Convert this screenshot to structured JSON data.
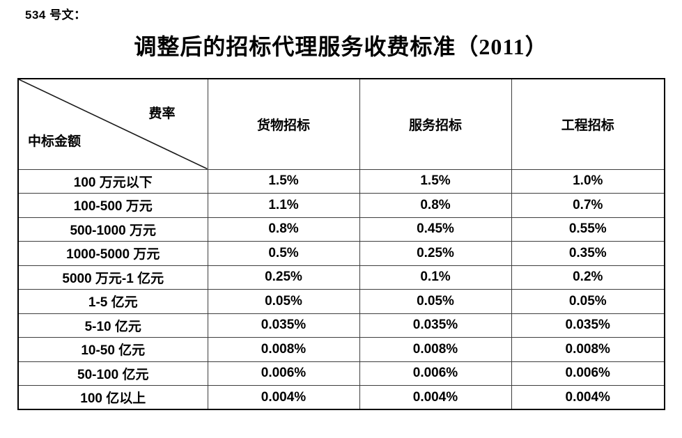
{
  "page": {
    "doc_label": "534 号文：",
    "title": "调整后的招标代理服务收费标准（2011）"
  },
  "table": {
    "corner": {
      "rate_label": "费率",
      "amount_label": "中标金额"
    },
    "columns": [
      "货物招标",
      "服务招标",
      "工程招标"
    ],
    "rows": [
      {
        "amount": "100 万元以下",
        "rates": [
          "1.5%",
          "1.5%",
          "1.0%"
        ]
      },
      {
        "amount": "100-500 万元",
        "rates": [
          "1.1%",
          "0.8%",
          "0.7%"
        ]
      },
      {
        "amount": "500-1000 万元",
        "rates": [
          "0.8%",
          "0.45%",
          "0.55%"
        ]
      },
      {
        "amount": "1000-5000 万元",
        "rates": [
          "0.5%",
          "0.25%",
          "0.35%"
        ]
      },
      {
        "amount": "5000 万元-1 亿元",
        "rates": [
          "0.25%",
          "0.1%",
          "0.2%"
        ]
      },
      {
        "amount": "1-5 亿元",
        "rates": [
          "0.05%",
          "0.05%",
          "0.05%"
        ]
      },
      {
        "amount": "5-10 亿元",
        "rates": [
          "0.035%",
          "0.035%",
          "0.035%"
        ]
      },
      {
        "amount": "10-50 亿元",
        "rates": [
          "0.008%",
          "0.008%",
          "0.008%"
        ]
      },
      {
        "amount": "50-100 亿元",
        "rates": [
          "0.006%",
          "0.006%",
          "0.006%"
        ]
      },
      {
        "amount": "100 亿以上",
        "rates": [
          "0.004%",
          "0.004%",
          "0.004%"
        ]
      }
    ]
  },
  "colors": {
    "background": "#ffffff",
    "text": "#000000",
    "grid_line": "#3d3d3d",
    "outer_border": "#000000"
  }
}
